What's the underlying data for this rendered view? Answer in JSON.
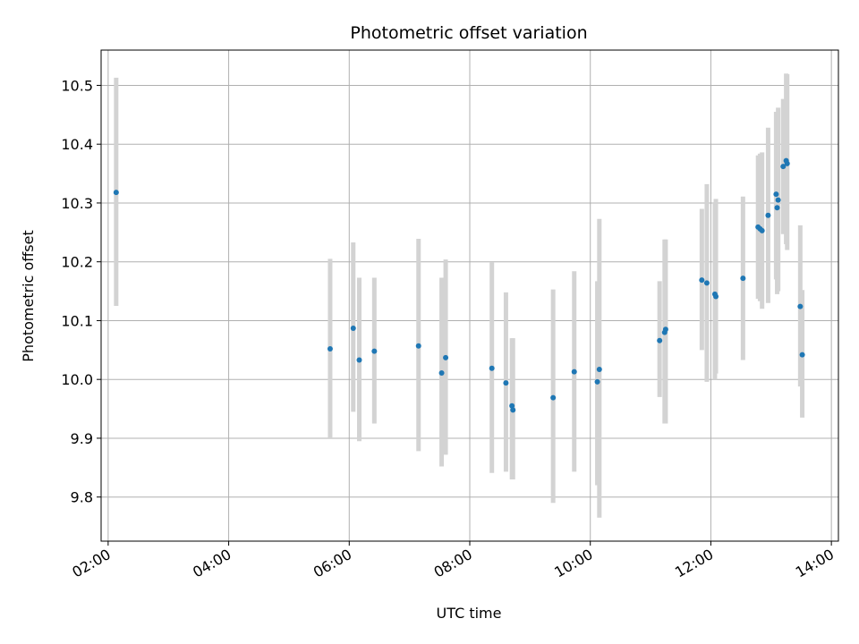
{
  "chart_data": {
    "type": "scatter",
    "title": "Photometric offset variation",
    "xlabel": "UTC time",
    "ylabel": "Photometric offset",
    "x_is_time": true,
    "xlim": [
      "01:53",
      "14:07"
    ],
    "ylim": [
      9.725,
      10.56
    ],
    "xticks": [
      "02:00",
      "04:00",
      "06:00",
      "08:00",
      "10:00",
      "12:00",
      "14:00"
    ],
    "yticks": [
      "9.8",
      "9.9",
      "10.0",
      "10.1",
      "10.2",
      "10.3",
      "10.4",
      "10.5"
    ],
    "ytick_values": [
      9.8,
      9.9,
      10.0,
      10.1,
      10.2,
      10.3,
      10.4,
      10.5
    ],
    "grid": true,
    "colors": {
      "points": "#1f77b4",
      "errorbars": "#d3d3d3",
      "grid": "#b0b0b0"
    },
    "points": [
      {
        "x": "02:08",
        "y": 10.318,
        "yerr": [
          10.125,
          10.513
        ]
      },
      {
        "x": "05:41",
        "y": 10.052,
        "yerr": [
          9.9,
          10.205
        ]
      },
      {
        "x": "06:04",
        "y": 10.087,
        "yerr": [
          9.945,
          10.233
        ]
      },
      {
        "x": "06:10",
        "y": 10.033,
        "yerr": [
          9.895,
          10.173
        ]
      },
      {
        "x": "06:25",
        "y": 10.048,
        "yerr": [
          9.925,
          10.173
        ]
      },
      {
        "x": "07:09",
        "y": 10.057,
        "yerr": [
          9.878,
          10.239
        ]
      },
      {
        "x": "07:32",
        "y": 10.011,
        "yerr": [
          9.852,
          10.173
        ]
      },
      {
        "x": "07:36",
        "y": 10.037,
        "yerr": [
          9.872,
          10.204
        ]
      },
      {
        "x": "08:22",
        "y": 10.019,
        "yerr": [
          9.841,
          10.199
        ]
      },
      {
        "x": "08:36",
        "y": 9.994,
        "yerr": [
          9.843,
          10.148
        ]
      },
      {
        "x": "08:42",
        "y": 9.955,
        "yerr": [
          9.83,
          10.07
        ]
      },
      {
        "x": "08:43",
        "y": 9.948,
        "yerr": [
          9.83,
          10.07
        ]
      },
      {
        "x": "09:23",
        "y": 9.969,
        "yerr": [
          9.79,
          10.153
        ]
      },
      {
        "x": "09:44",
        "y": 10.013,
        "yerr": [
          9.843,
          10.184
        ]
      },
      {
        "x": "10:07",
        "y": 9.996,
        "yerr": [
          9.82,
          10.167
        ]
      },
      {
        "x": "10:09",
        "y": 10.017,
        "yerr": [
          9.765,
          10.273
        ]
      },
      {
        "x": "11:09",
        "y": 10.066,
        "yerr": [
          9.97,
          10.167
        ]
      },
      {
        "x": "11:14",
        "y": 10.08,
        "yerr": [
          9.925,
          10.238
        ]
      },
      {
        "x": "11:15",
        "y": 10.085,
        "yerr": [
          9.925,
          10.238
        ]
      },
      {
        "x": "11:51",
        "y": 10.169,
        "yerr": [
          10.05,
          10.29
        ]
      },
      {
        "x": "11:56",
        "y": 10.164,
        "yerr": [
          9.996,
          10.332
        ]
      },
      {
        "x": "12:04",
        "y": 10.145,
        "yerr": [
          10.0,
          10.3
        ]
      },
      {
        "x": "12:05",
        "y": 10.141,
        "yerr": [
          10.01,
          10.307
        ]
      },
      {
        "x": "12:32",
        "y": 10.172,
        "yerr": [
          10.033,
          10.311
        ]
      },
      {
        "x": "12:47",
        "y": 10.259,
        "yerr": [
          10.137,
          10.381
        ]
      },
      {
        "x": "12:49",
        "y": 10.256,
        "yerr": [
          10.133,
          10.384
        ]
      },
      {
        "x": "12:51",
        "y": 10.253,
        "yerr": [
          10.12,
          10.386
        ]
      },
      {
        "x": "12:57",
        "y": 10.279,
        "yerr": [
          10.13,
          10.428
        ]
      },
      {
        "x": "13:05",
        "y": 10.315,
        "yerr": [
          10.17,
          10.455
        ]
      },
      {
        "x": "13:06",
        "y": 10.292,
        "yerr": [
          10.145,
          10.44
        ]
      },
      {
        "x": "13:07",
        "y": 10.305,
        "yerr": [
          10.15,
          10.462
        ]
      },
      {
        "x": "13:12",
        "y": 10.362,
        "yerr": [
          10.247,
          10.477
        ]
      },
      {
        "x": "13:15",
        "y": 10.372,
        "yerr": [
          10.23,
          10.52
        ]
      },
      {
        "x": "13:16",
        "y": 10.367,
        "yerr": [
          10.22,
          10.519
        ]
      },
      {
        "x": "13:29",
        "y": 10.124,
        "yerr": [
          9.988,
          10.262
        ]
      },
      {
        "x": "13:31",
        "y": 10.042,
        "yerr": [
          9.935,
          10.152
        ]
      }
    ]
  }
}
